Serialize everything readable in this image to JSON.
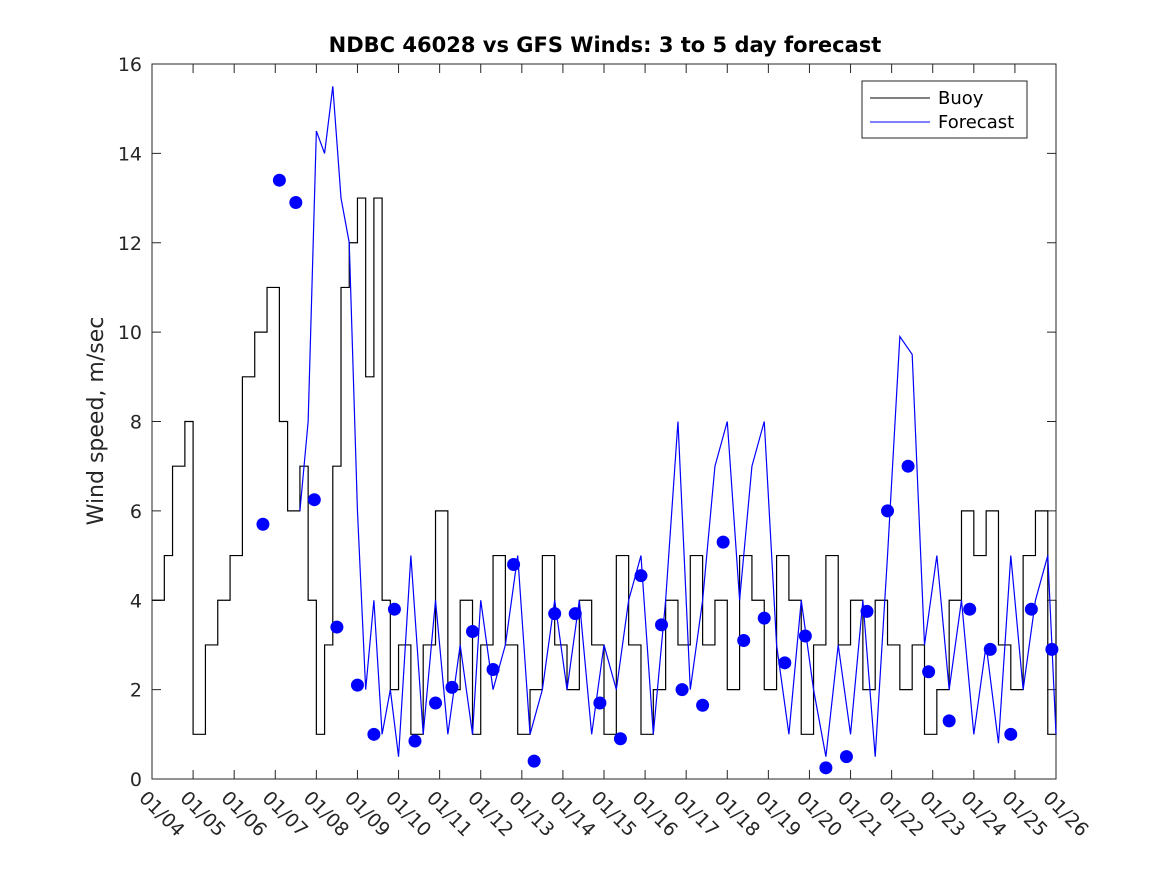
{
  "chart_data": {
    "type": "line",
    "title": "NDBC 46028 vs GFS Winds: 3 to 5 day forecast",
    "xlabel": "",
    "ylabel": "Wind speed, m/sec",
    "xlim": [
      "01/04",
      "01/26"
    ],
    "ylim": [
      0,
      16
    ],
    "x_ticks": [
      "01/04",
      "01/05",
      "01/06",
      "01/07",
      "01/08",
      "01/09",
      "01/10",
      "01/11",
      "01/12",
      "01/13",
      "01/14",
      "01/15",
      "01/16",
      "01/17",
      "01/18",
      "01/19",
      "01/20",
      "01/21",
      "01/22",
      "01/23",
      "01/24",
      "01/25",
      "01/26"
    ],
    "y_ticks": [
      0,
      2,
      4,
      6,
      8,
      10,
      12,
      14,
      16
    ],
    "grid": false,
    "legend": {
      "position": "top-right",
      "entries": [
        "Buoy",
        "Forecast"
      ]
    },
    "colors": {
      "buoy": "#000000",
      "forecast": "#0000ff"
    },
    "series": [
      {
        "name": "Buoy",
        "color": "#000000",
        "x_days": [
          0.0,
          0.3,
          0.5,
          0.8,
          1.0,
          1.3,
          1.6,
          1.9,
          2.2,
          2.5,
          2.8,
          3.1,
          3.3,
          3.6,
          3.8,
          4.0,
          4.2,
          4.4,
          4.6,
          4.8,
          5.0,
          5.2,
          5.4,
          5.6,
          5.8,
          6.0,
          6.3,
          6.6,
          6.9,
          7.2,
          7.5,
          7.8,
          8.0,
          8.3,
          8.6,
          8.9,
          9.2,
          9.5,
          9.8,
          10.1,
          10.4,
          10.7,
          11.0,
          11.3,
          11.6,
          11.9,
          12.2,
          12.5,
          12.8,
          13.1,
          13.4,
          13.7,
          14.0,
          14.3,
          14.6,
          14.9,
          15.2,
          15.5,
          15.8,
          16.1,
          16.4,
          16.7,
          17.0,
          17.3,
          17.6,
          17.9,
          18.2,
          18.5,
          18.8,
          19.1,
          19.4,
          19.7,
          20.0,
          20.3,
          20.6,
          20.9,
          21.2,
          21.5,
          21.8,
          22.0
        ],
        "values": [
          4,
          5,
          7,
          8,
          1,
          3,
          4,
          5,
          9,
          10,
          11,
          8,
          6,
          7,
          4,
          1,
          3,
          7,
          11,
          12,
          13,
          9,
          13,
          4,
          2,
          3,
          1,
          3,
          6,
          2,
          4,
          1,
          3,
          5,
          3,
          1,
          2,
          5,
          3,
          2,
          4,
          3,
          1,
          5,
          3,
          1,
          2,
          4,
          3,
          5,
          3,
          4,
          2,
          5,
          4,
          2,
          5,
          4,
          1,
          3,
          5,
          3,
          4,
          2,
          4,
          3,
          2,
          3,
          1,
          2,
          4,
          6,
          5,
          6,
          3,
          2,
          5,
          6,
          1,
          4
        ]
      },
      {
        "name": "Forecast",
        "color": "#0000ff",
        "x_days": [
          3.6,
          3.8,
          4.0,
          4.2,
          4.4,
          4.6,
          4.8,
          5.0,
          5.2,
          5.4,
          5.6,
          5.8,
          6.0,
          6.3,
          6.6,
          6.9,
          7.2,
          7.5,
          7.8,
          8.0,
          8.3,
          8.6,
          8.9,
          9.2,
          9.5,
          9.8,
          10.1,
          10.4,
          10.7,
          11.0,
          11.3,
          11.6,
          11.9,
          12.2,
          12.5,
          12.8,
          13.1,
          13.4,
          13.7,
          14.0,
          14.3,
          14.6,
          14.9,
          15.2,
          15.5,
          15.8,
          16.1,
          16.4,
          16.7,
          17.0,
          17.3,
          17.6,
          17.9,
          18.2,
          18.5,
          18.8,
          19.1,
          19.4,
          19.7,
          20.0,
          20.3,
          20.6,
          20.9,
          21.2,
          21.5,
          21.8,
          22.0
        ],
        "values": [
          6,
          8,
          14.5,
          14,
          15.5,
          13,
          12,
          6,
          2,
          4,
          1,
          2,
          0.5,
          5,
          1,
          4,
          1,
          3,
          1,
          4,
          2,
          3,
          5,
          1,
          2,
          4,
          2,
          4,
          1,
          3,
          2,
          4,
          5,
          1,
          4,
          8,
          2,
          4,
          7,
          8,
          4,
          7,
          8,
          3,
          1,
          4,
          2,
          0.5,
          3,
          1,
          4,
          0.5,
          5,
          9.9,
          9.5,
          3,
          5,
          2,
          4,
          1,
          3,
          0.8,
          5,
          2,
          4,
          5,
          1
        ]
      },
      {
        "name": "",
        "color": "#0000ff",
        "points": true,
        "x_days": [
          2.7,
          3.1,
          3.5,
          3.95,
          4.5,
          5.0,
          5.4,
          5.9,
          6.4,
          6.9,
          7.3,
          7.8,
          8.3,
          8.8,
          9.3,
          9.8,
          10.3,
          10.9,
          11.4,
          11.9,
          12.4,
          12.9,
          13.4,
          13.9,
          14.4,
          14.9,
          15.4,
          15.9,
          16.4,
          16.9,
          17.4,
          17.9,
          18.4,
          18.9,
          19.4,
          19.9,
          20.4,
          20.9,
          21.4,
          21.9
        ],
        "values": [
          5.7,
          13.4,
          12.9,
          6.25,
          3.4,
          2.1,
          1.0,
          3.8,
          0.85,
          1.7,
          2.05,
          3.3,
          2.45,
          4.8,
          0.4,
          3.7,
          3.7,
          1.7,
          0.9,
          4.55,
          3.45,
          2.0,
          1.65,
          5.3,
          3.1,
          3.6,
          2.6,
          3.2,
          0.25,
          0.5,
          3.75,
          6.0,
          7.0,
          2.4,
          1.3,
          3.8,
          2.9,
          1.0,
          3.8,
          2.9
        ]
      }
    ]
  }
}
